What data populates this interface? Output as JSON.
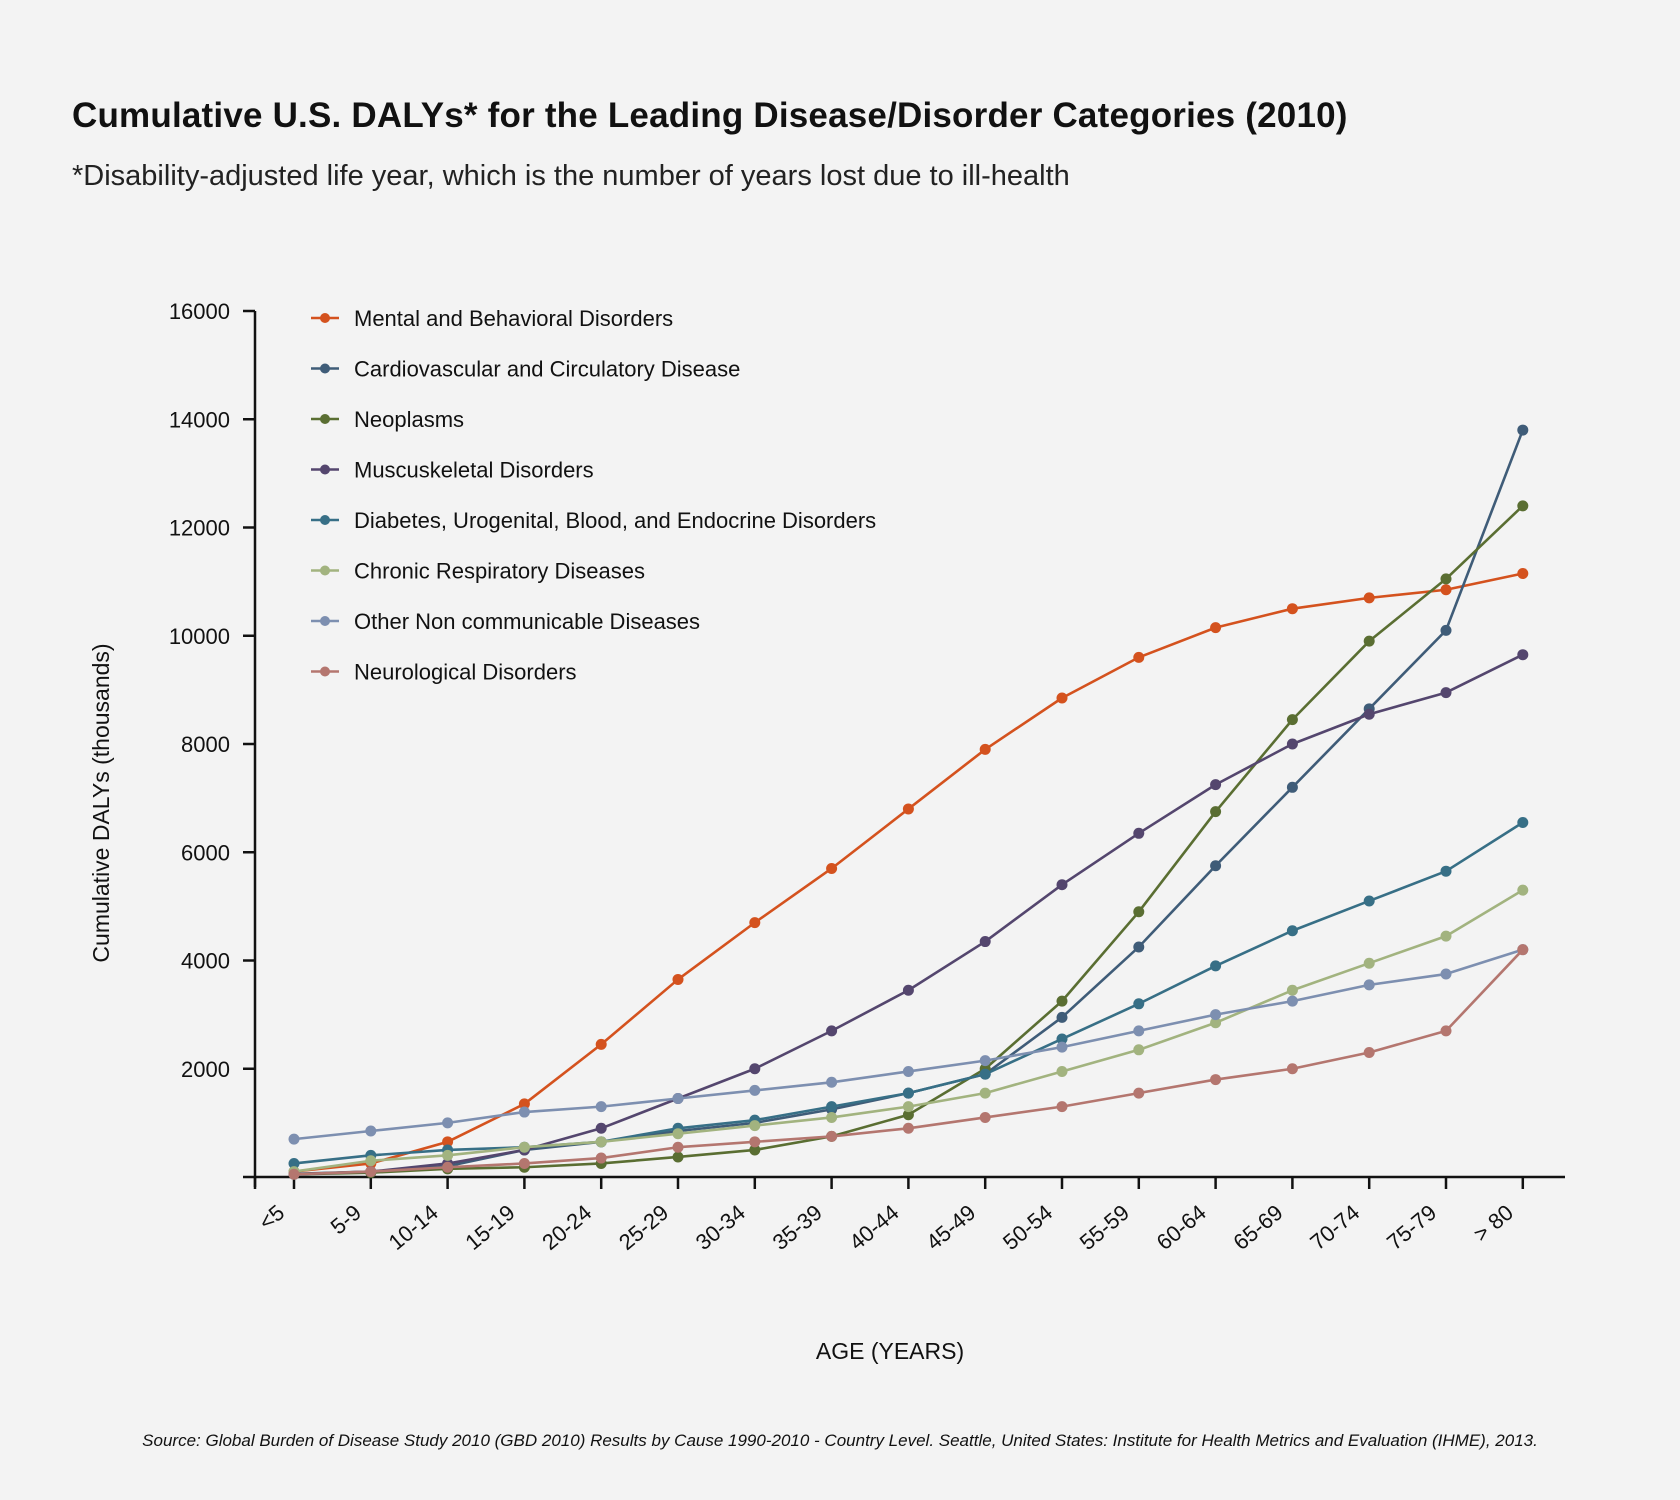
{
  "header": {
    "title": "Cumulative U.S. DALYs* for the Leading Disease/Disorder Categories (2010)",
    "subtitle": "*Disability-adjusted life year, which is the number of years lost due to ill-health"
  },
  "footer": {
    "source": "Source: Global Burden of Disease Study 2010 (GBD 2010) Results by Cause 1990-2010 - Country Level. Seattle, United States: Institute for Health Metrics and Evaluation (IHME), 2013."
  },
  "chart_data": {
    "type": "line",
    "title": "Cumulative U.S. DALYs* for the Leading Disease/Disorder Categories (2010)",
    "xlabel": "AGE (YEARS)",
    "ylabel": "Cumulative DALYs (thousands)",
    "ylim": [
      0,
      16000
    ],
    "yticks": [
      2000,
      4000,
      6000,
      8000,
      10000,
      12000,
      14000,
      16000
    ],
    "ytick_labels": [
      "2000",
      "4000",
      "6000",
      "8000",
      "10000",
      "12000",
      "14000",
      "16000"
    ],
    "grid": false,
    "legend_position": "top-left",
    "categories": [
      "<5",
      "5-9",
      "10-14",
      "15-19",
      "20-24",
      "25-29",
      "30-34",
      "35-39",
      "40-44",
      "45-49",
      "50-54",
      "55-59",
      "60-64",
      "65-69",
      "70-74",
      "75-79",
      "> 80"
    ],
    "series": [
      {
        "name": "Mental and Behavioral Disorders",
        "color": "#d4521e",
        "values": [
          100,
          250,
          650,
          1350,
          2450,
          3650,
          4700,
          5700,
          6800,
          7900,
          8850,
          9600,
          10150,
          10500,
          10700,
          10850,
          11150
        ]
      },
      {
        "name": "Cardiovascular and Circulatory Disease",
        "color": "#3f5c78",
        "values": [
          60,
          100,
          200,
          500,
          650,
          850,
          1000,
          1250,
          1550,
          1900,
          2950,
          4250,
          5750,
          7200,
          8650,
          10100,
          13800
        ]
      },
      {
        "name": "Neoplasms",
        "color": "#5a6e32",
        "values": [
          50,
          80,
          150,
          180,
          250,
          370,
          500,
          750,
          1150,
          2000,
          3250,
          4900,
          6750,
          8450,
          9900,
          11050,
          12400
        ]
      },
      {
        "name": "Muscuskeletal Disorders",
        "color": "#54466e",
        "values": [
          50,
          100,
          250,
          500,
          900,
          1450,
          2000,
          2700,
          3450,
          4350,
          5400,
          6350,
          7250,
          8000,
          8550,
          8950,
          9650
        ]
      },
      {
        "name": "Diabetes, Urogenital, Blood, and Endocrine Disorders",
        "color": "#376f86",
        "values": [
          250,
          400,
          500,
          550,
          650,
          900,
          1050,
          1300,
          1550,
          1900,
          2550,
          3200,
          3900,
          4550,
          5100,
          5650,
          6550
        ]
      },
      {
        "name": "Chronic Respiratory Diseases",
        "color": "#a2b37f",
        "values": [
          100,
          300,
          400,
          550,
          650,
          800,
          950,
          1100,
          1300,
          1550,
          1950,
          2350,
          2850,
          3450,
          3950,
          4450,
          5300
        ]
      },
      {
        "name": "Other Non communicable Diseases",
        "color": "#7d8fb0",
        "values": [
          700,
          850,
          1000,
          1200,
          1300,
          1450,
          1600,
          1750,
          1950,
          2150,
          2400,
          2700,
          3000,
          3250,
          3550,
          3750,
          4200
        ]
      },
      {
        "name": "Neurological Disorders",
        "color": "#b4766f",
        "values": [
          50,
          100,
          180,
          250,
          350,
          550,
          650,
          750,
          900,
          1100,
          1300,
          1550,
          1800,
          2000,
          2300,
          2700,
          4200
        ]
      }
    ]
  }
}
